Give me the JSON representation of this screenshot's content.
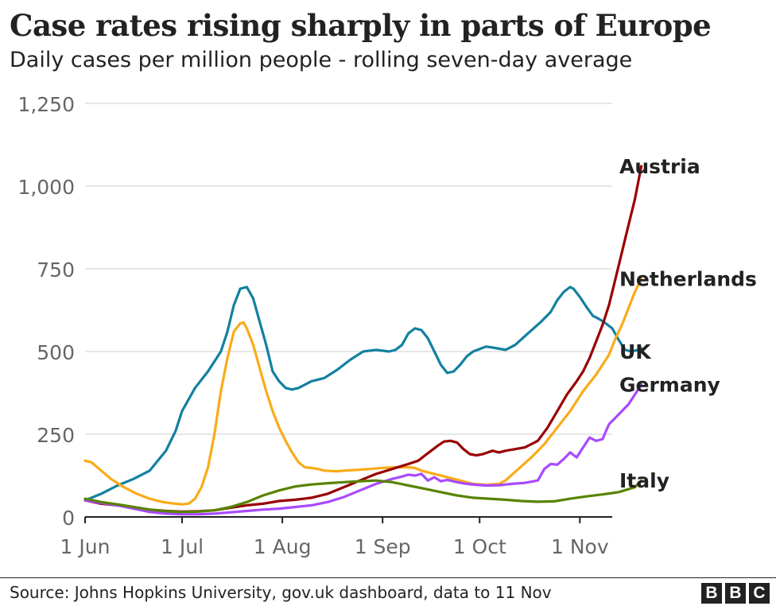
{
  "chart_data": {
    "type": "line",
    "title": "Case rates rising sharply in parts of Europe",
    "subtitle": "Daily cases per million people - rolling seven-day average",
    "xlabel": "",
    "ylabel": "",
    "x_unit": "days since 1 Jun",
    "xlim": [
      0,
      163
    ],
    "ylim": [
      0,
      1250
    ],
    "grid": true,
    "x_ticks": [
      {
        "label": "1 Jun",
        "x": 0
      },
      {
        "label": "1 Jul",
        "x": 30
      },
      {
        "label": "1 Aug",
        "x": 61
      },
      {
        "label": "1 Sep",
        "x": 92
      },
      {
        "label": "1 Oct",
        "x": 122
      },
      {
        "label": "1 Nov",
        "x": 153
      }
    ],
    "y_ticks": [
      {
        "label": "0",
        "value": 0
      },
      {
        "label": "250",
        "value": 250
      },
      {
        "label": "500",
        "value": 500
      },
      {
        "label": "750",
        "value": 750
      },
      {
        "label": "1,000",
        "value": 1000
      },
      {
        "label": "1,250",
        "value": 1250
      }
    ],
    "series": [
      {
        "name": "UK",
        "color": "#1380A1",
        "label_value": 500,
        "points": [
          [
            0,
            50
          ],
          [
            5,
            70
          ],
          [
            10,
            95
          ],
          [
            15,
            115
          ],
          [
            20,
            140
          ],
          [
            25,
            200
          ],
          [
            28,
            260
          ],
          [
            30,
            320
          ],
          [
            34,
            390
          ],
          [
            38,
            440
          ],
          [
            42,
            500
          ],
          [
            44,
            560
          ],
          [
            46,
            640
          ],
          [
            48,
            690
          ],
          [
            50,
            695
          ],
          [
            52,
            660
          ],
          [
            54,
            590
          ],
          [
            56,
            520
          ],
          [
            58,
            440
          ],
          [
            60,
            410
          ],
          [
            62,
            390
          ],
          [
            64,
            385
          ],
          [
            66,
            390
          ],
          [
            70,
            410
          ],
          [
            74,
            420
          ],
          [
            78,
            445
          ],
          [
            82,
            475
          ],
          [
            86,
            500
          ],
          [
            90,
            505
          ],
          [
            94,
            500
          ],
          [
            96,
            505
          ],
          [
            98,
            520
          ],
          [
            100,
            555
          ],
          [
            102,
            570
          ],
          [
            104,
            565
          ],
          [
            106,
            540
          ],
          [
            108,
            500
          ],
          [
            110,
            460
          ],
          [
            112,
            435
          ],
          [
            114,
            440
          ],
          [
            116,
            460
          ],
          [
            118,
            485
          ],
          [
            120,
            500
          ],
          [
            124,
            515
          ],
          [
            126,
            512
          ],
          [
            130,
            505
          ],
          [
            133,
            520
          ],
          [
            137,
            555
          ],
          [
            141,
            590
          ],
          [
            144,
            620
          ],
          [
            146,
            655
          ],
          [
            148,
            680
          ],
          [
            150,
            695
          ],
          [
            151,
            690
          ],
          [
            153,
            665
          ],
          [
            155,
            635
          ],
          [
            157,
            608
          ],
          [
            159,
            598
          ],
          [
            161,
            585
          ],
          [
            163,
            570
          ],
          [
            165,
            535
          ],
          [
            167,
            505
          ],
          [
            169,
            500
          ],
          [
            171,
            505
          ],
          [
            172,
            510
          ]
        ]
      },
      {
        "name": "Netherlands",
        "color": "#FAAB18",
        "label_value": 720,
        "points": [
          [
            0,
            170
          ],
          [
            2,
            165
          ],
          [
            5,
            140
          ],
          [
            8,
            115
          ],
          [
            12,
            90
          ],
          [
            16,
            70
          ],
          [
            20,
            55
          ],
          [
            24,
            45
          ],
          [
            28,
            40
          ],
          [
            30,
            38
          ],
          [
            32,
            40
          ],
          [
            34,
            55
          ],
          [
            36,
            90
          ],
          [
            38,
            150
          ],
          [
            40,
            250
          ],
          [
            42,
            380
          ],
          [
            44,
            480
          ],
          [
            46,
            560
          ],
          [
            48,
            585
          ],
          [
            49,
            588
          ],
          [
            50,
            570
          ],
          [
            52,
            520
          ],
          [
            54,
            450
          ],
          [
            56,
            380
          ],
          [
            58,
            320
          ],
          [
            60,
            270
          ],
          [
            62,
            230
          ],
          [
            64,
            195
          ],
          [
            66,
            165
          ],
          [
            68,
            150
          ],
          [
            70,
            148
          ],
          [
            72,
            145
          ],
          [
            74,
            140
          ],
          [
            78,
            138
          ],
          [
            80,
            140
          ],
          [
            84,
            142
          ],
          [
            88,
            145
          ],
          [
            92,
            148
          ],
          [
            96,
            150
          ],
          [
            100,
            150
          ],
          [
            102,
            148
          ],
          [
            104,
            140
          ],
          [
            108,
            130
          ],
          [
            110,
            125
          ],
          [
            114,
            115
          ],
          [
            116,
            110
          ],
          [
            118,
            105
          ],
          [
            120,
            100
          ],
          [
            124,
            97
          ],
          [
            128,
            100
          ],
          [
            130,
            110
          ],
          [
            134,
            145
          ],
          [
            138,
            180
          ],
          [
            142,
            220
          ],
          [
            146,
            270
          ],
          [
            150,
            320
          ],
          [
            154,
            380
          ],
          [
            158,
            430
          ],
          [
            162,
            490
          ],
          [
            164,
            540
          ],
          [
            166,
            580
          ],
          [
            168,
            630
          ],
          [
            170,
            680
          ],
          [
            172,
            720
          ]
        ]
      },
      {
        "name": "Austria",
        "color": "#990000",
        "label_value": 1060,
        "points": [
          [
            0,
            50
          ],
          [
            5,
            40
          ],
          [
            10,
            35
          ],
          [
            15,
            28
          ],
          [
            20,
            22
          ],
          [
            25,
            18
          ],
          [
            30,
            16
          ],
          [
            35,
            17
          ],
          [
            40,
            20
          ],
          [
            45,
            28
          ],
          [
            50,
            35
          ],
          [
            55,
            40
          ],
          [
            60,
            48
          ],
          [
            65,
            52
          ],
          [
            70,
            58
          ],
          [
            75,
            70
          ],
          [
            80,
            90
          ],
          [
            85,
            110
          ],
          [
            90,
            130
          ],
          [
            95,
            145
          ],
          [
            100,
            160
          ],
          [
            103,
            170
          ],
          [
            105,
            185
          ],
          [
            107,
            200
          ],
          [
            109,
            215
          ],
          [
            111,
            228
          ],
          [
            113,
            230
          ],
          [
            115,
            225
          ],
          [
            117,
            205
          ],
          [
            119,
            190
          ],
          [
            121,
            186
          ],
          [
            123,
            190
          ],
          [
            126,
            200
          ],
          [
            128,
            195
          ],
          [
            130,
            200
          ],
          [
            133,
            205
          ],
          [
            136,
            210
          ],
          [
            140,
            230
          ],
          [
            143,
            270
          ],
          [
            146,
            320
          ],
          [
            149,
            370
          ],
          [
            152,
            410
          ],
          [
            154,
            440
          ],
          [
            156,
            480
          ],
          [
            158,
            530
          ],
          [
            160,
            580
          ],
          [
            162,
            640
          ],
          [
            164,
            720
          ],
          [
            166,
            800
          ],
          [
            168,
            880
          ],
          [
            170,
            960
          ],
          [
            172,
            1060
          ]
        ]
      },
      {
        "name": "Germany",
        "color": "#A74AFF",
        "label_value": 400,
        "points": [
          [
            0,
            50
          ],
          [
            5,
            42
          ],
          [
            10,
            35
          ],
          [
            15,
            25
          ],
          [
            20,
            15
          ],
          [
            25,
            10
          ],
          [
            30,
            8
          ],
          [
            35,
            8
          ],
          [
            40,
            10
          ],
          [
            45,
            14
          ],
          [
            50,
            18
          ],
          [
            55,
            22
          ],
          [
            60,
            25
          ],
          [
            65,
            30
          ],
          [
            70,
            35
          ],
          [
            75,
            45
          ],
          [
            80,
            60
          ],
          [
            85,
            80
          ],
          [
            90,
            100
          ],
          [
            95,
            115
          ],
          [
            98,
            122
          ],
          [
            100,
            128
          ],
          [
            102,
            125
          ],
          [
            104,
            130
          ],
          [
            106,
            110
          ],
          [
            108,
            120
          ],
          [
            110,
            108
          ],
          [
            112,
            112
          ],
          [
            115,
            105
          ],
          [
            118,
            100
          ],
          [
            121,
            97
          ],
          [
            124,
            95
          ],
          [
            128,
            96
          ],
          [
            132,
            100
          ],
          [
            136,
            103
          ],
          [
            140,
            110
          ],
          [
            142,
            145
          ],
          [
            144,
            160
          ],
          [
            146,
            158
          ],
          [
            148,
            175
          ],
          [
            150,
            195
          ],
          [
            152,
            180
          ],
          [
            154,
            210
          ],
          [
            156,
            240
          ],
          [
            158,
            230
          ],
          [
            160,
            235
          ],
          [
            162,
            280
          ],
          [
            164,
            300
          ],
          [
            166,
            320
          ],
          [
            168,
            340
          ],
          [
            170,
            370
          ],
          [
            172,
            400
          ]
        ]
      },
      {
        "name": "Italy",
        "color": "#588300",
        "label_value": 110,
        "points": [
          [
            0,
            55
          ],
          [
            5,
            45
          ],
          [
            10,
            38
          ],
          [
            15,
            30
          ],
          [
            20,
            22
          ],
          [
            25,
            17
          ],
          [
            30,
            15
          ],
          [
            35,
            16
          ],
          [
            40,
            20
          ],
          [
            45,
            30
          ],
          [
            50,
            45
          ],
          [
            55,
            65
          ],
          [
            60,
            80
          ],
          [
            65,
            92
          ],
          [
            70,
            98
          ],
          [
            75,
            102
          ],
          [
            80,
            105
          ],
          [
            85,
            108
          ],
          [
            90,
            110
          ],
          [
            95,
            105
          ],
          [
            100,
            95
          ],
          [
            105,
            85
          ],
          [
            110,
            75
          ],
          [
            115,
            65
          ],
          [
            120,
            58
          ],
          [
            125,
            55
          ],
          [
            130,
            52
          ],
          [
            135,
            48
          ],
          [
            140,
            46
          ],
          [
            145,
            47
          ],
          [
            150,
            55
          ],
          [
            155,
            62
          ],
          [
            160,
            68
          ],
          [
            165,
            75
          ],
          [
            170,
            90
          ],
          [
            172,
            110
          ]
        ]
      }
    ]
  },
  "footer": {
    "source": "Source: Johns Hopkins University, gov.uk dashboard, data to 11 Nov",
    "logo_letters": [
      "B",
      "B",
      "C"
    ]
  }
}
